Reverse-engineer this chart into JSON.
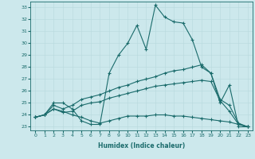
{
  "xlabel": "Humidex (Indice chaleur)",
  "ylabel": "",
  "bg_color": "#cce8ec",
  "line_color": "#1a6b6b",
  "grid_color": "#b8d8dc",
  "xlim": [
    -0.5,
    23.5
  ],
  "ylim": [
    22.7,
    33.5
  ],
  "yticks": [
    23,
    24,
    25,
    26,
    27,
    28,
    29,
    30,
    31,
    32,
    33
  ],
  "xticks": [
    0,
    1,
    2,
    3,
    4,
    5,
    6,
    7,
    8,
    9,
    10,
    11,
    12,
    13,
    14,
    15,
    16,
    17,
    18,
    19,
    20,
    21,
    22,
    23
  ],
  "line1_x": [
    0,
    1,
    2,
    3,
    4,
    5,
    6,
    7,
    8,
    9,
    10,
    11,
    12,
    13,
    14,
    15,
    16,
    17,
    18,
    19,
    20,
    21,
    22,
    23
  ],
  "line1_y": [
    23.8,
    24.0,
    25.0,
    25.0,
    24.5,
    23.5,
    23.2,
    23.2,
    27.5,
    29.0,
    30.0,
    31.5,
    29.5,
    33.2,
    32.2,
    31.8,
    31.7,
    30.3,
    28.0,
    27.5,
    25.0,
    26.5,
    23.0,
    23.0
  ],
  "line2_x": [
    0,
    1,
    2,
    3,
    4,
    5,
    6,
    7,
    8,
    9,
    10,
    11,
    12,
    13,
    14,
    15,
    16,
    17,
    18,
    19,
    20,
    21,
    22,
    23
  ],
  "line2_y": [
    23.8,
    24.0,
    24.8,
    24.5,
    24.8,
    25.3,
    25.5,
    25.7,
    26.0,
    26.3,
    26.5,
    26.8,
    27.0,
    27.2,
    27.5,
    27.7,
    27.8,
    28.0,
    28.2,
    27.5,
    25.3,
    24.8,
    23.3,
    23.0
  ],
  "line3_x": [
    0,
    1,
    2,
    3,
    4,
    5,
    6,
    7,
    8,
    9,
    10,
    11,
    12,
    13,
    14,
    15,
    16,
    17,
    18,
    19,
    20,
    21,
    22,
    23
  ],
  "line3_y": [
    23.8,
    24.0,
    24.5,
    24.2,
    24.3,
    24.8,
    25.0,
    25.1,
    25.4,
    25.6,
    25.8,
    26.0,
    26.2,
    26.4,
    26.5,
    26.6,
    26.7,
    26.8,
    26.9,
    26.8,
    25.2,
    24.3,
    23.2,
    23.0
  ],
  "line4_x": [
    0,
    1,
    2,
    3,
    4,
    5,
    6,
    7,
    8,
    9,
    10,
    11,
    12,
    13,
    14,
    15,
    16,
    17,
    18,
    19,
    20,
    21,
    22,
    23
  ],
  "line4_y": [
    23.8,
    24.0,
    24.5,
    24.3,
    24.0,
    23.8,
    23.5,
    23.3,
    23.5,
    23.7,
    23.9,
    23.9,
    23.9,
    24.0,
    24.0,
    23.9,
    23.9,
    23.8,
    23.7,
    23.6,
    23.5,
    23.4,
    23.2,
    23.0
  ]
}
